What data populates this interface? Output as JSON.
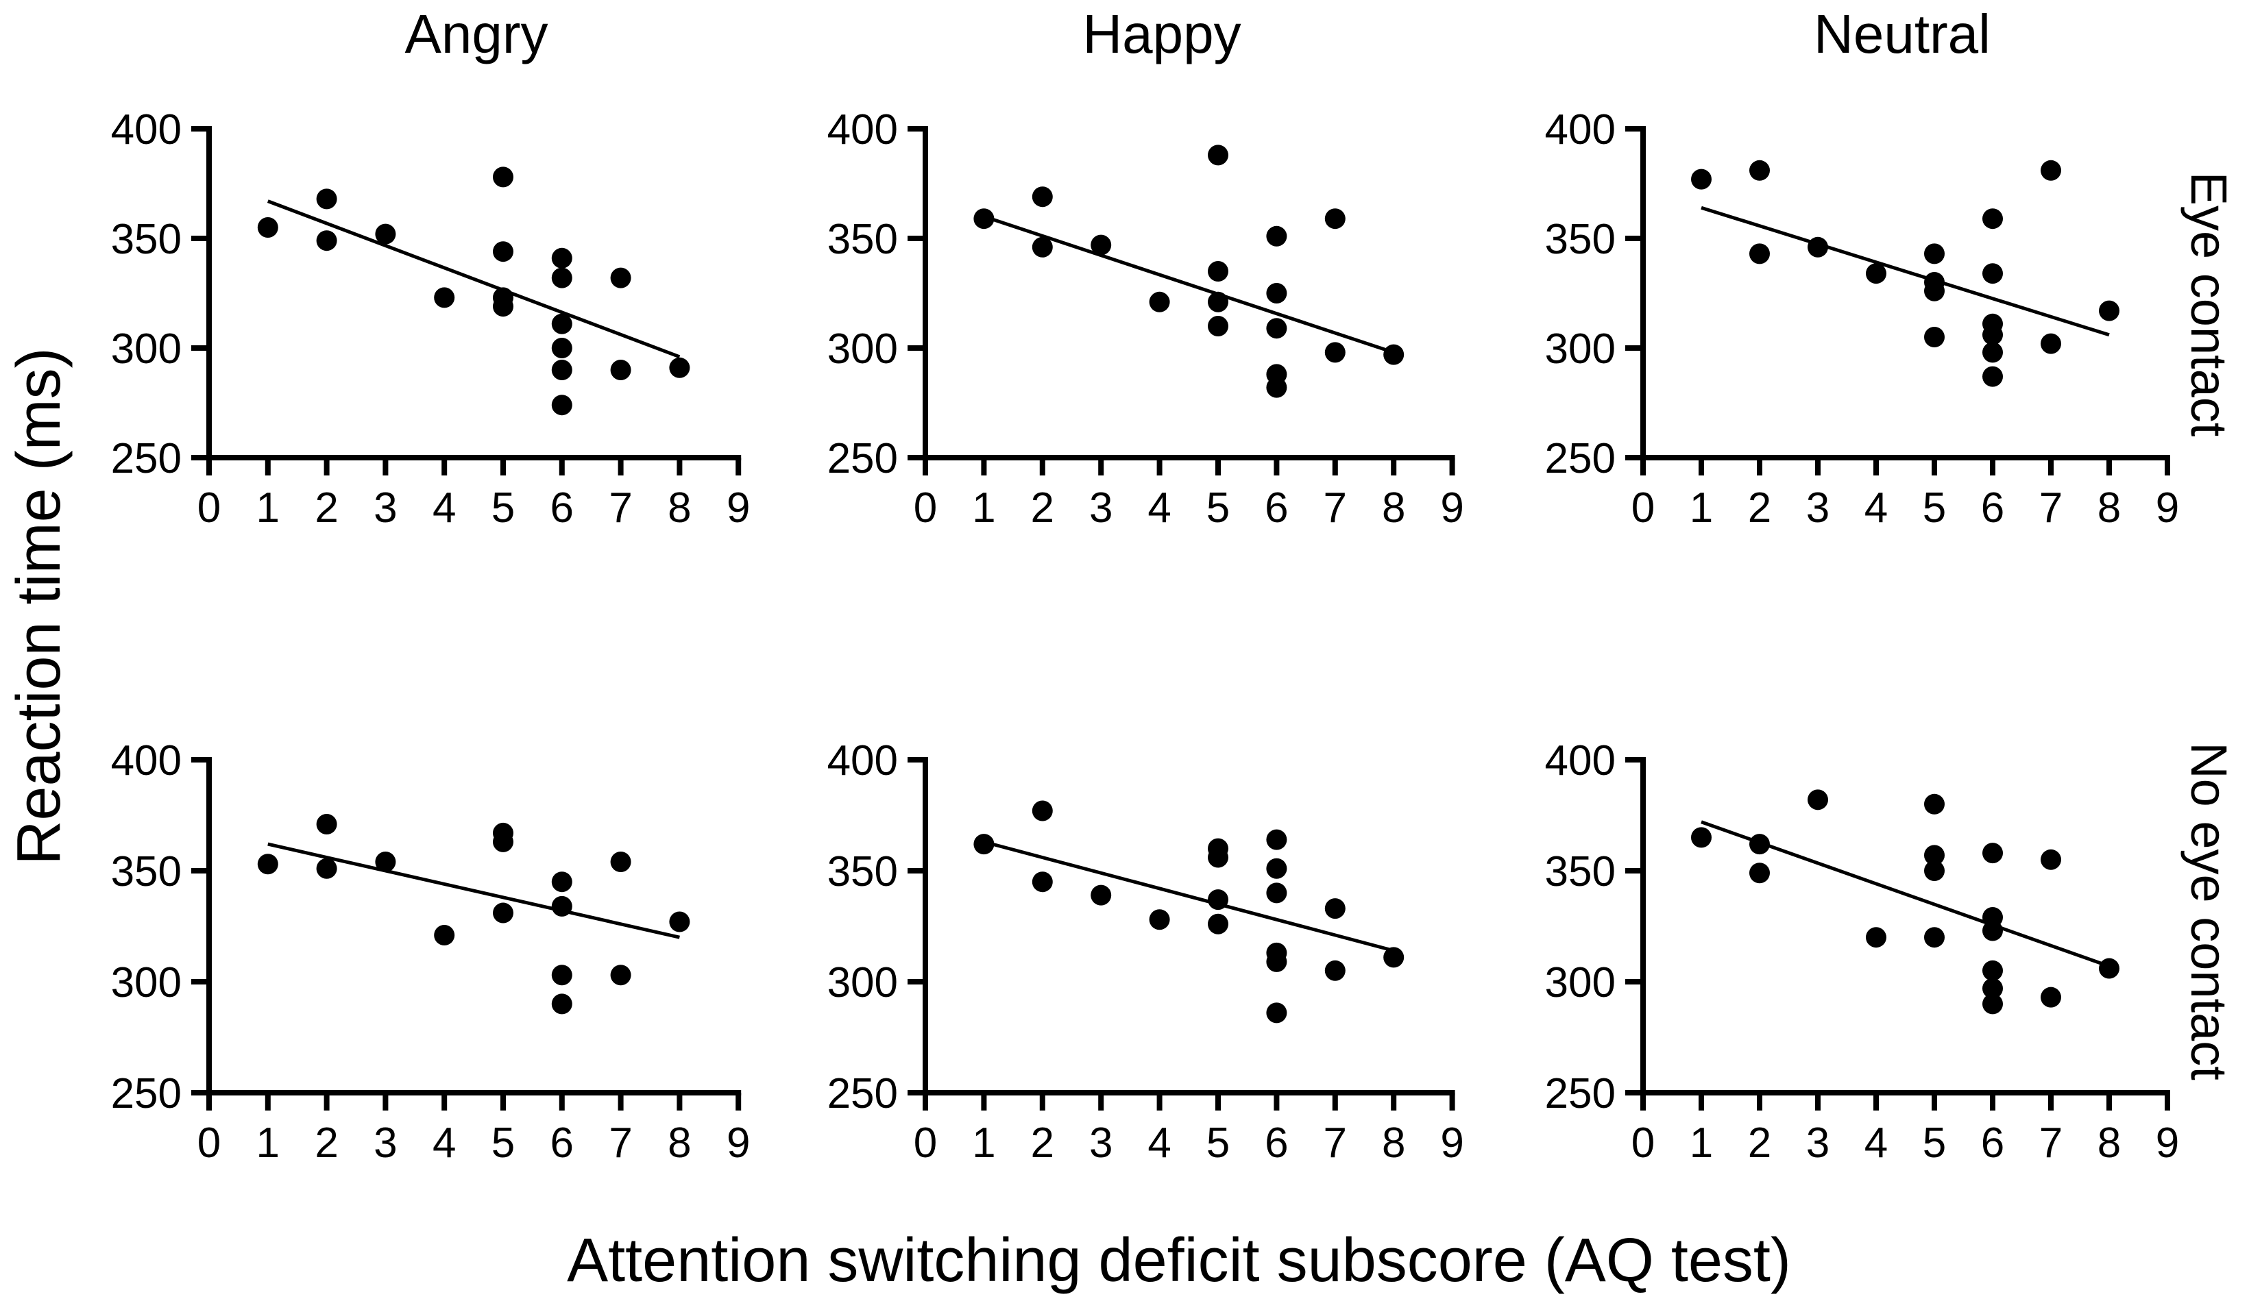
{
  "figure": {
    "ylabel": "Reaction time (ms)",
    "xlabel": "Attention switching deficit subscore (AQ test)",
    "col_titles": [
      "Angry",
      "Happy",
      "Neutral"
    ],
    "row_labels": [
      "Eye contact",
      "No eye contact"
    ],
    "colors": {
      "ink": "#000000",
      "background": "#ffffff"
    }
  },
  "chart_data": [
    {
      "type": "scatter",
      "title": "Angry",
      "condition": "Eye contact",
      "xlabel": "Attention switching deficit subscore (AQ test)",
      "ylabel": "Reaction time (ms)",
      "xlim": [
        0,
        9
      ],
      "ylim": [
        250,
        400
      ],
      "xticks": [
        0,
        1,
        2,
        3,
        4,
        5,
        6,
        7,
        8,
        9
      ],
      "yticks": [
        400,
        350,
        300,
        250
      ],
      "grid": false,
      "points": [
        [
          1,
          355
        ],
        [
          2,
          368
        ],
        [
          2,
          349
        ],
        [
          3,
          352
        ],
        [
          4,
          323
        ],
        [
          5,
          378
        ],
        [
          5,
          344
        ],
        [
          5,
          323
        ],
        [
          5,
          319
        ],
        [
          6,
          341
        ],
        [
          6,
          332
        ],
        [
          6,
          311
        ],
        [
          6,
          300
        ],
        [
          6,
          290
        ],
        [
          6,
          274
        ],
        [
          7,
          332
        ],
        [
          7,
          290
        ],
        [
          8,
          291
        ]
      ],
      "trendline": {
        "x1": 1,
        "y1": 367,
        "x2": 8,
        "y2": 296
      }
    },
    {
      "type": "scatter",
      "title": "Happy",
      "condition": "Eye contact",
      "xlabel": "Attention switching deficit subscore (AQ test)",
      "ylabel": "Reaction time (ms)",
      "xlim": [
        0,
        9
      ],
      "ylim": [
        250,
        400
      ],
      "xticks": [
        0,
        1,
        2,
        3,
        4,
        5,
        6,
        7,
        8,
        9
      ],
      "yticks": [
        400,
        350,
        300,
        250
      ],
      "grid": false,
      "points": [
        [
          1,
          359
        ],
        [
          2,
          369
        ],
        [
          2,
          346
        ],
        [
          3,
          347
        ],
        [
          4,
          321
        ],
        [
          5,
          388
        ],
        [
          5,
          335
        ],
        [
          5,
          321
        ],
        [
          5,
          310
        ],
        [
          6,
          351
        ],
        [
          6,
          325
        ],
        [
          6,
          309
        ],
        [
          6,
          288
        ],
        [
          6,
          282
        ],
        [
          7,
          359
        ],
        [
          7,
          298
        ],
        [
          8,
          297
        ]
      ],
      "trendline": {
        "x1": 1,
        "y1": 360,
        "x2": 8,
        "y2": 298
      }
    },
    {
      "type": "scatter",
      "title": "Neutral",
      "condition": "Eye contact",
      "xlabel": "Attention switching deficit subscore (AQ test)",
      "ylabel": "Reaction time (ms)",
      "xlim": [
        0,
        9
      ],
      "ylim": [
        250,
        400
      ],
      "xticks": [
        0,
        1,
        2,
        3,
        4,
        5,
        6,
        7,
        8,
        9
      ],
      "yticks": [
        400,
        350,
        300,
        250
      ],
      "grid": false,
      "points": [
        [
          1,
          377
        ],
        [
          2,
          381
        ],
        [
          2,
          343
        ],
        [
          3,
          346
        ],
        [
          4,
          334
        ],
        [
          5,
          343
        ],
        [
          5,
          330
        ],
        [
          5,
          326
        ],
        [
          5,
          305
        ],
        [
          6,
          359
        ],
        [
          6,
          334
        ],
        [
          6,
          311
        ],
        [
          6,
          306
        ],
        [
          6,
          298
        ],
        [
          6,
          287
        ],
        [
          7,
          381
        ],
        [
          7,
          302
        ],
        [
          8,
          317
        ]
      ],
      "trendline": {
        "x1": 1,
        "y1": 364,
        "x2": 8,
        "y2": 306
      }
    },
    {
      "type": "scatter",
      "title": "Angry",
      "condition": "No eye contact",
      "xlabel": "Attention switching deficit subscore (AQ test)",
      "ylabel": "Reaction time (ms)",
      "xlim": [
        0,
        9
      ],
      "ylim": [
        250,
        400
      ],
      "xticks": [
        0,
        1,
        2,
        3,
        4,
        5,
        6,
        7,
        8,
        9
      ],
      "yticks": [
        400,
        350,
        300,
        250
      ],
      "grid": false,
      "points": [
        [
          1,
          353
        ],
        [
          2,
          371
        ],
        [
          2,
          351
        ],
        [
          3,
          354
        ],
        [
          4,
          321
        ],
        [
          5,
          367
        ],
        [
          5,
          363
        ],
        [
          5,
          331
        ],
        [
          6,
          345
        ],
        [
          6,
          334
        ],
        [
          6,
          303
        ],
        [
          6,
          290
        ],
        [
          7,
          354
        ],
        [
          7,
          303
        ],
        [
          8,
          327
        ]
      ],
      "trendline": {
        "x1": 1,
        "y1": 362,
        "x2": 8,
        "y2": 320
      }
    },
    {
      "type": "scatter",
      "title": "Happy",
      "condition": "No eye contact",
      "xlabel": "Attention switching deficit subscore (AQ test)",
      "ylabel": "Reaction time (ms)",
      "xlim": [
        0,
        9
      ],
      "ylim": [
        250,
        400
      ],
      "xticks": [
        0,
        1,
        2,
        3,
        4,
        5,
        6,
        7,
        8,
        9
      ],
      "yticks": [
        400,
        350,
        300,
        250
      ],
      "grid": false,
      "points": [
        [
          1,
          362
        ],
        [
          2,
          377
        ],
        [
          2,
          345
        ],
        [
          3,
          339
        ],
        [
          4,
          328
        ],
        [
          5,
          360
        ],
        [
          5,
          356
        ],
        [
          5,
          337
        ],
        [
          5,
          326
        ],
        [
          6,
          364
        ],
        [
          6,
          351
        ],
        [
          6,
          340
        ],
        [
          6,
          313
        ],
        [
          6,
          309
        ],
        [
          6,
          286
        ],
        [
          7,
          333
        ],
        [
          7,
          305
        ],
        [
          8,
          311
        ]
      ],
      "trendline": {
        "x1": 1,
        "y1": 363,
        "x2": 8,
        "y2": 314
      }
    },
    {
      "type": "scatter",
      "title": "Neutral",
      "condition": "No eye contact",
      "xlabel": "Attention switching deficit subscore (AQ test)",
      "ylabel": "Reaction time (ms)",
      "xlim": [
        0,
        9
      ],
      "ylim": [
        250,
        400
      ],
      "xticks": [
        0,
        1,
        2,
        3,
        4,
        5,
        6,
        7,
        8,
        9
      ],
      "yticks": [
        400,
        350,
        300,
        250
      ],
      "grid": false,
      "points": [
        [
          1,
          365
        ],
        [
          2,
          362
        ],
        [
          2,
          349
        ],
        [
          3,
          382
        ],
        [
          4,
          320
        ],
        [
          5,
          380
        ],
        [
          5,
          357
        ],
        [
          5,
          350
        ],
        [
          5,
          320
        ],
        [
          6,
          358
        ],
        [
          6,
          329
        ],
        [
          6,
          323
        ],
        [
          6,
          305
        ],
        [
          6,
          297
        ],
        [
          6,
          290
        ],
        [
          7,
          355
        ],
        [
          7,
          293
        ],
        [
          8,
          306
        ]
      ],
      "trendline": {
        "x1": 1,
        "y1": 372,
        "x2": 8,
        "y2": 307
      }
    }
  ]
}
